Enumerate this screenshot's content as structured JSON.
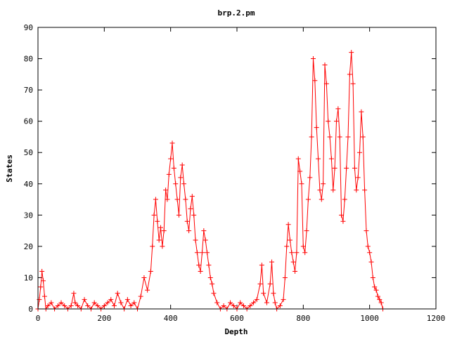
{
  "chart_data": {
    "type": "line",
    "title": "brp.2.pm",
    "xlabel": "Depth",
    "ylabel": "States",
    "xlim": [
      0,
      1200
    ],
    "ylim": [
      0,
      90
    ],
    "xticks": [
      0,
      200,
      400,
      600,
      800,
      1000,
      1200
    ],
    "yticks": [
      0,
      10,
      20,
      30,
      40,
      50,
      60,
      70,
      80,
      90
    ],
    "grid": false,
    "legend": "none",
    "marker": "plus",
    "color": "#ff0000",
    "series": [
      {
        "x": [
          0,
          4,
          8,
          12,
          16,
          20,
          24,
          30,
          40,
          50,
          60,
          70,
          80,
          90,
          100,
          108,
          112,
          120,
          130,
          140,
          150,
          160,
          170,
          180,
          190,
          200,
          210,
          220,
          230,
          240,
          250,
          260,
          270,
          280,
          290,
          300,
          310,
          320,
          330,
          340,
          345,
          350,
          355,
          360,
          365,
          370,
          375,
          380,
          385,
          390,
          395,
          400,
          405,
          410,
          415,
          420,
          425,
          430,
          435,
          440,
          445,
          450,
          455,
          460,
          465,
          470,
          475,
          480,
          485,
          490,
          495,
          500,
          505,
          510,
          515,
          520,
          525,
          530,
          540,
          550,
          560,
          570,
          580,
          590,
          600,
          610,
          620,
          630,
          640,
          650,
          660,
          670,
          675,
          680,
          690,
          700,
          705,
          710,
          715,
          720,
          730,
          740,
          745,
          750,
          755,
          760,
          765,
          770,
          775,
          780,
          785,
          790,
          795,
          800,
          805,
          810,
          815,
          820,
          825,
          830,
          835,
          840,
          845,
          850,
          855,
          860,
          865,
          870,
          875,
          880,
          885,
          890,
          895,
          900,
          905,
          910,
          915,
          920,
          925,
          930,
          935,
          940,
          945,
          950,
          955,
          960,
          965,
          970,
          975,
          980,
          985,
          990,
          995,
          1000,
          1005,
          1010,
          1015,
          1020,
          1025,
          1030,
          1035,
          1040
        ],
        "y": [
          0,
          3,
          7,
          12,
          9,
          4,
          0,
          1,
          2,
          0,
          1,
          2,
          1,
          0,
          1,
          5,
          2,
          1,
          0,
          3,
          1,
          0,
          2,
          1,
          0,
          1,
          2,
          3,
          1,
          5,
          2,
          0,
          3,
          1,
          2,
          0,
          4,
          10,
          6,
          12,
          20,
          30,
          35,
          28,
          22,
          26,
          20,
          25,
          38,
          35,
          43,
          48,
          53,
          45,
          40,
          35,
          30,
          42,
          46,
          40,
          35,
          28,
          25,
          32,
          36,
          30,
          22,
          18,
          14,
          12,
          18,
          25,
          22,
          18,
          14,
          10,
          8,
          5,
          2,
          0,
          1,
          0,
          2,
          1,
          0,
          2,
          1,
          0,
          1,
          2,
          3,
          8,
          14,
          5,
          2,
          8,
          15,
          5,
          2,
          0,
          1,
          3,
          10,
          20,
          27,
          22,
          18,
          15,
          12,
          18,
          48,
          44,
          40,
          20,
          18,
          25,
          35,
          42,
          55,
          80,
          73,
          58,
          48,
          38,
          35,
          40,
          78,
          72,
          60,
          55,
          48,
          38,
          45,
          60,
          64,
          55,
          30,
          28,
          35,
          45,
          55,
          75,
          82,
          72,
          45,
          38,
          42,
          50,
          63,
          55,
          38,
          25,
          20,
          18,
          15,
          10,
          7,
          6,
          4,
          3,
          2,
          0
        ]
      }
    ]
  }
}
